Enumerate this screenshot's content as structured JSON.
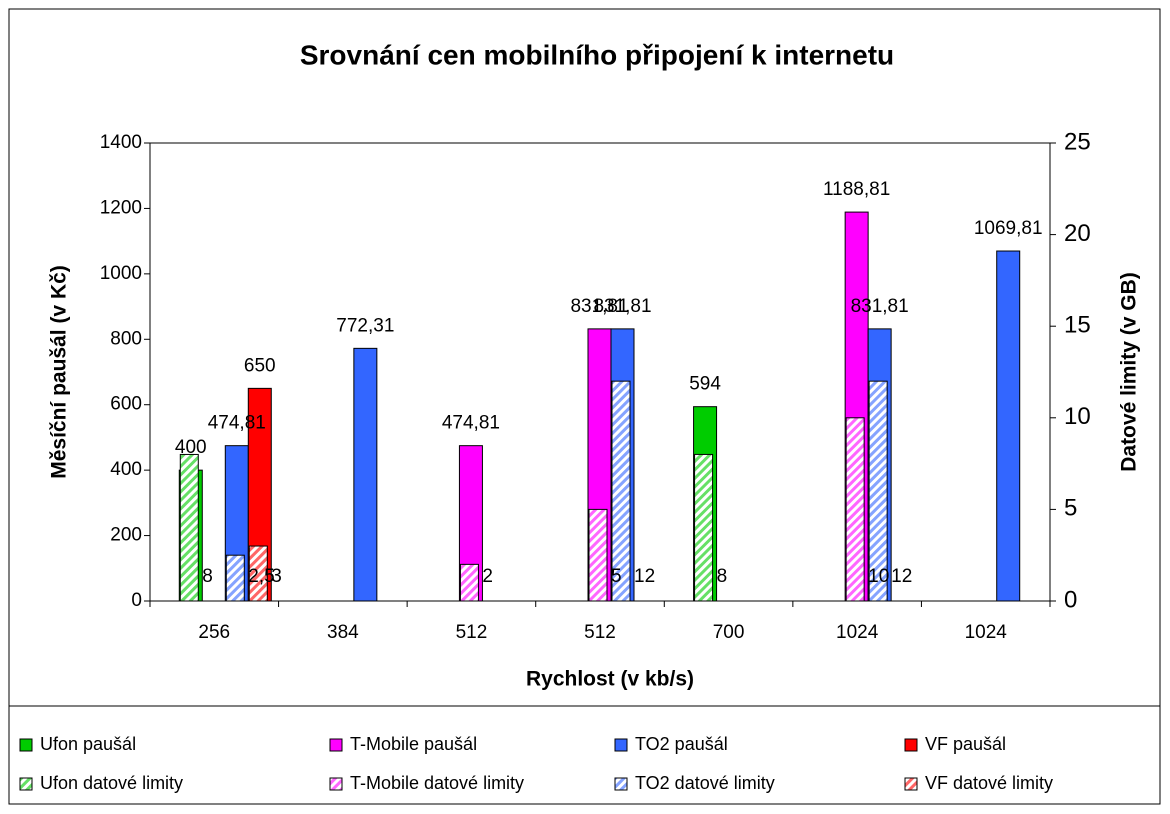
{
  "chart_data": {
    "type": "bar",
    "title": "Srovnání cen mobilního připojení k internetu",
    "x_label": "Rychlost (v kb/s)",
    "y_label": "Měsíční paušál (v Kč)",
    "y2_label": "Datové limity (v GB)",
    "categories": [
      "256",
      "384",
      "512",
      "512",
      "700",
      "1024",
      "1024"
    ],
    "ylim": [
      0,
      1400
    ],
    "yticks": [
      0,
      200,
      400,
      600,
      800,
      1000,
      1200,
      1400
    ],
    "y2lim": [
      0,
      25
    ],
    "y2ticks": [
      0,
      5,
      10,
      15,
      20,
      25
    ],
    "grid": false,
    "legend": "bottom",
    "series": [
      {
        "name": "Ufon paušál",
        "color": "#00cc00",
        "values": [
          400,
          null,
          null,
          null,
          594,
          null,
          null
        ],
        "value_labels": [
          "400",
          null,
          null,
          null,
          "594",
          null,
          null
        ]
      },
      {
        "name": "T-Mobile paušál",
        "color": "#ff00ff",
        "values": [
          null,
          null,
          474.81,
          831.81,
          null,
          1188.81,
          null
        ],
        "value_labels": [
          null,
          null,
          "474,81",
          "831,81",
          null,
          "1188,81",
          null
        ]
      },
      {
        "name": "TO2 paušál",
        "color": "#3366ff",
        "values": [
          474.81,
          772.31,
          null,
          831.81,
          null,
          831.81,
          1069.81
        ],
        "value_labels": [
          "474,81",
          "772,31",
          null,
          "831,81",
          null,
          "831,81",
          "1069,81"
        ]
      },
      {
        "name": "VF paušál",
        "color": "#ff0000",
        "values": [
          650,
          null,
          null,
          null,
          null,
          null,
          null
        ],
        "value_labels": [
          "650",
          null,
          null,
          null,
          null,
          null,
          null
        ]
      },
      {
        "name": "Ufon datové limity",
        "color": "#00cc00",
        "pattern": "hatch",
        "axis": "y2",
        "values": [
          8,
          null,
          null,
          null,
          8,
          null,
          null
        ],
        "value_labels": [
          "8",
          null,
          null,
          null,
          "8",
          null,
          null
        ]
      },
      {
        "name": "T-Mobile datové limity",
        "color": "#ff00ff",
        "pattern": "hatch",
        "axis": "y2",
        "values": [
          null,
          null,
          2,
          5,
          null,
          10,
          null
        ],
        "value_labels": [
          null,
          null,
          "2",
          "5",
          null,
          "10",
          null
        ]
      },
      {
        "name": "TO2 datové limity",
        "color": "#3366ff",
        "pattern": "hatch",
        "axis": "y2",
        "values": [
          2.5,
          null,
          null,
          12,
          null,
          12,
          null
        ],
        "value_labels": [
          "2,5",
          null,
          null,
          "12",
          null,
          "12",
          null
        ]
      },
      {
        "name": "VF datové limity",
        "color": "#ff0000",
        "pattern": "hatch",
        "axis": "y2",
        "values": [
          3,
          null,
          null,
          null,
          null,
          null,
          null
        ],
        "value_labels": [
          "3",
          null,
          null,
          null,
          null,
          null,
          null
        ]
      }
    ]
  }
}
